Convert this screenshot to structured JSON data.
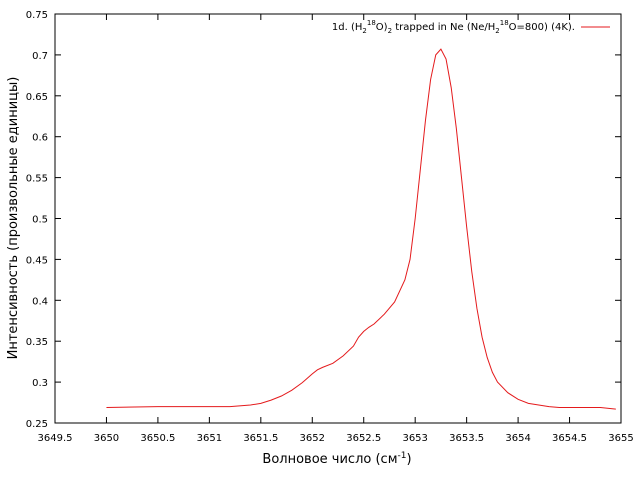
{
  "chart_data": {
    "type": "line",
    "xlabel": "Волновое число (см-1)",
    "xlabel_main": "Волновое число (см",
    "xlabel_sup": "-1",
    "xlabel_end": ")",
    "ylabel": "Интенсивность (произвольные единицы)",
    "xlim": [
      3649.5,
      3655
    ],
    "ylim": [
      0.25,
      0.75
    ],
    "x_ticks": [
      3649.5,
      3650,
      3650.5,
      3651,
      3651.5,
      3652,
      3652.5,
      3653,
      3653.5,
      3654,
      3654.5,
      3655
    ],
    "y_ticks": [
      0.25,
      0.3,
      0.35,
      0.4,
      0.45,
      0.5,
      0.55,
      0.6,
      0.65,
      0.7,
      0.75
    ],
    "grid": false,
    "legend_position": "top-right",
    "series": [
      {
        "name": "1d. (H218O)2 trapped in Ne (Ne/H218O=800) (4K).",
        "name_parts": [
          "1d. (H",
          "2",
          "18",
          "O)",
          "2",
          " trapped in Ne (Ne/H",
          "2",
          "18",
          "O=800) (4K)."
        ],
        "color": "#e41a1c",
        "x": [
          3650.0,
          3650.5,
          3651.0,
          3651.2,
          3651.4,
          3651.5,
          3651.6,
          3651.7,
          3651.8,
          3651.9,
          3652.0,
          3652.05,
          3652.1,
          3652.2,
          3652.3,
          3652.4,
          3652.45,
          3652.5,
          3652.55,
          3652.6,
          3652.7,
          3652.8,
          3652.9,
          3652.95,
          3653.0,
          3653.05,
          3653.1,
          3653.15,
          3653.2,
          3653.25,
          3653.3,
          3653.35,
          3653.4,
          3653.45,
          3653.5,
          3653.55,
          3653.6,
          3653.65,
          3653.7,
          3653.75,
          3653.8,
          3653.9,
          3654.0,
          3654.1,
          3654.2,
          3654.3,
          3654.4,
          3654.6,
          3654.8,
          3654.95
        ],
        "y": [
          0.269,
          0.27,
          0.27,
          0.27,
          0.272,
          0.274,
          0.278,
          0.283,
          0.29,
          0.299,
          0.31,
          0.315,
          0.318,
          0.323,
          0.332,
          0.344,
          0.355,
          0.362,
          0.367,
          0.371,
          0.383,
          0.398,
          0.425,
          0.45,
          0.5,
          0.56,
          0.62,
          0.67,
          0.7,
          0.707,
          0.695,
          0.66,
          0.61,
          0.55,
          0.49,
          0.435,
          0.39,
          0.355,
          0.33,
          0.312,
          0.3,
          0.287,
          0.279,
          0.274,
          0.272,
          0.27,
          0.269,
          0.269,
          0.269,
          0.267
        ]
      }
    ]
  }
}
